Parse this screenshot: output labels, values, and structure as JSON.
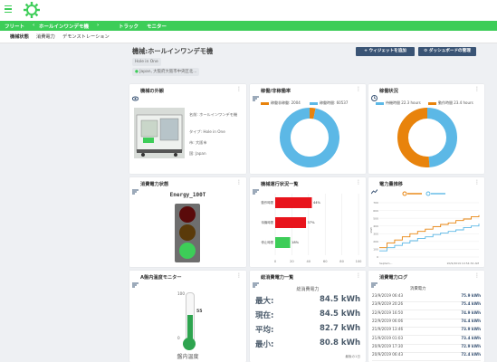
{
  "nav": {
    "fleet": "フリート",
    "machine": "ホールインワンデモ機",
    "truck": "トラック",
    "monitor": "モニター"
  },
  "subnav": {
    "status": "機械状態",
    "power": "消費電力",
    "demo": "デモンストレーション"
  },
  "page": {
    "title": "機械:ホールインワンデモ機",
    "tag": "Hole in One",
    "location": "Japan, 大阪府大阪市中央区北...",
    "add_widget": "+ ウィジェットを追加",
    "settings": "ダッシュボードの管理"
  },
  "machine_card": {
    "title": "機械の外観",
    "name_label": "名前:",
    "name": "ホールインワンデモ機",
    "type_label": "タイプ:",
    "type": "Hole in One",
    "city_label": "市:",
    "city": "大阪市",
    "country_label": "国:",
    "country": "Japan"
  },
  "utilization": {
    "title": "稼働/非稼働率",
    "legend": [
      {
        "label": "稼働非稼働:",
        "value": "2004",
        "color": "#e8830c"
      },
      {
        "label": "稼働時間:",
        "value": "60537",
        "color": "#5cb8e6"
      }
    ],
    "slices": [
      2004,
      60537
    ]
  },
  "operation": {
    "title": "稼働状況",
    "legend": [
      {
        "label": "待機時間",
        "value": "22.3 hours",
        "color": "#5cb8e6"
      },
      {
        "label": "動作時間",
        "value": "23.4 hours",
        "color": "#e8830c"
      }
    ],
    "slices": [
      22.3,
      23.4
    ]
  },
  "power_state": {
    "title": "消費電力状態",
    "device": "Energy_100T",
    "lights": [
      "#5a0a0a",
      "#5a3a0a",
      "#3dcd58"
    ]
  },
  "run_status": {
    "title": "機械運行状況一覧",
    "rows": [
      {
        "label": "動作時間",
        "pct": 44,
        "text": "44%",
        "color": "#e8141c"
      },
      {
        "label": "待機時間",
        "pct": 37,
        "text": "37%",
        "color": "#e8141c"
      },
      {
        "label": "停止時間",
        "pct": 18,
        "text": "18%",
        "color": "#3dcd58"
      }
    ],
    "ticks": [
      "0",
      "20",
      "40",
      "60",
      "80",
      "100"
    ]
  },
  "power_trend": {
    "title": "電力量推移",
    "series": [
      {
        "name": "",
        "color": "#e8830c",
        "values": [
          120,
          180,
          220,
          260,
          300,
          330,
          360,
          390,
          420,
          440,
          470,
          490,
          520,
          540
        ]
      },
      {
        "name": "",
        "color": "#5cb8e6",
        "values": [
          80,
          120,
          150,
          180,
          210,
          240,
          260,
          290,
          310,
          330,
          350,
          380,
          400,
          430
        ]
      }
    ],
    "ylabel": "kWh",
    "ymax": 700,
    "ticks": [
      "700",
      "600",
      "500",
      "400",
      "300",
      "200",
      "100",
      "0"
    ],
    "x_start": "Septem...",
    "x_end": "20/9/2019 10:54:32 AM"
  },
  "temp": {
    "title": "A盤内温度モニター",
    "value": "55",
    "max": "100",
    "min": "0",
    "level": 0.55,
    "label": "盤内温度"
  },
  "total_power": {
    "title": "総消費電力一覧",
    "subtitle": "総消費電力",
    "rows": [
      {
        "label": "最大:",
        "value": "84.5 kWh"
      },
      {
        "label": "現在:",
        "value": "84.5 kWh"
      },
      {
        "label": "平均:",
        "value": "82.7 kWh"
      },
      {
        "label": "最小:",
        "value": "80.8 kWh"
      }
    ],
    "footer": "最後の1日"
  },
  "power_log": {
    "title": "消費電力ログ",
    "header": "消費電力",
    "rows": [
      {
        "date": "23/9/2019 06:43",
        "value": "75.9 kWh"
      },
      {
        "date": "23/9/2019 20:26",
        "value": "75.4 kWh"
      },
      {
        "date": "22/9/2019 16:50",
        "value": "74.9 kWh"
      },
      {
        "date": "22/9/2019 06:06",
        "value": "74.4 kWh"
      },
      {
        "date": "21/9/2019 13:46",
        "value": "73.9 kWh"
      },
      {
        "date": "21/9/2019 01:03",
        "value": "73.4 kWh"
      },
      {
        "date": "20/9/2019 17:30",
        "value": "72.9 kWh"
      },
      {
        "date": "20/9/2019 06:43",
        "value": "72.4 kWh"
      }
    ]
  },
  "colors": {
    "brand": "#3dcd58",
    "navy": "#3a5475"
  }
}
